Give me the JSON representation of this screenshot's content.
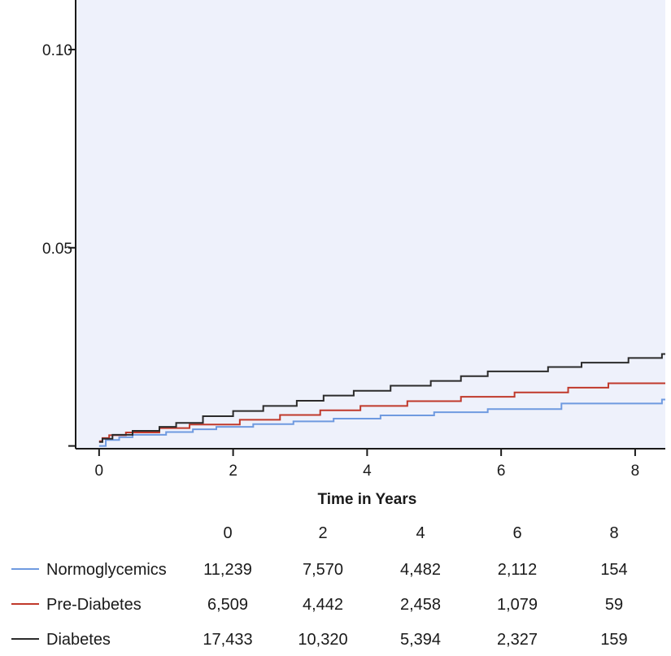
{
  "chart_data": {
    "type": "line",
    "step": true,
    "title": "",
    "xlabel": "Time in Years",
    "ylabel": "",
    "xlim": [
      -0.35,
      8.45
    ],
    "ylim": [
      -0.0007,
      0.1125
    ],
    "xticks": [
      0,
      2,
      4,
      6,
      8
    ],
    "xtick_labels": [
      "0",
      "2",
      "4",
      "6",
      "8"
    ],
    "yticks": [
      0.0,
      0.05,
      0.1
    ],
    "ytick_labels": [
      "",
      "0.05",
      "0.10"
    ],
    "background": "#eef1fb",
    "series": [
      {
        "name": "Normoglycemics",
        "color": "#6f9ae0",
        "x": [
          0,
          0.1,
          0.3,
          0.5,
          1.0,
          1.4,
          1.75,
          2.3,
          2.9,
          3.5,
          4.2,
          5.0,
          5.8,
          6.9,
          8.4
        ],
        "y": [
          0.0,
          0.0015,
          0.0022,
          0.0028,
          0.0035,
          0.0042,
          0.0048,
          0.0055,
          0.0062,
          0.0069,
          0.0077,
          0.0085,
          0.0093,
          0.0107,
          0.0117
        ]
      },
      {
        "name": "Pre-Diabetes",
        "color": "#c0392b",
        "x": [
          0,
          0.05,
          0.15,
          0.4,
          0.9,
          1.35,
          2.1,
          2.7,
          3.3,
          3.9,
          4.6,
          5.4,
          6.2,
          7.0,
          7.6,
          8.4
        ],
        "y": [
          0.0012,
          0.002,
          0.0027,
          0.0034,
          0.0045,
          0.0054,
          0.0066,
          0.0078,
          0.009,
          0.0101,
          0.0113,
          0.0124,
          0.0135,
          0.0147,
          0.0158,
          0.0158
        ]
      },
      {
        "name": "Diabetes",
        "color": "#2b2b2b",
        "x": [
          0,
          0.05,
          0.2,
          0.5,
          0.9,
          1.15,
          1.55,
          2.0,
          2.45,
          2.95,
          3.35,
          3.8,
          4.35,
          4.95,
          5.4,
          5.8,
          6.7,
          7.2,
          7.9,
          8.4
        ],
        "y": [
          0.001,
          0.0018,
          0.0028,
          0.0038,
          0.0048,
          0.0058,
          0.0075,
          0.0088,
          0.0101,
          0.0114,
          0.0127,
          0.0139,
          0.0152,
          0.0164,
          0.0176,
          0.0188,
          0.0199,
          0.021,
          0.0222,
          0.0232
        ]
      }
    ]
  },
  "risk_table": {
    "headers": [
      "0",
      "2",
      "4",
      "6",
      "8"
    ],
    "rows": [
      {
        "label": "Normoglycemics",
        "color": "#6f9ae0",
        "values": [
          "11,239",
          "7,570",
          "4,482",
          "2,112",
          "154"
        ]
      },
      {
        "label": "Pre-Diabetes",
        "color": "#c0392b",
        "values": [
          "6,509",
          "4,442",
          "2,458",
          "1,079",
          "59"
        ]
      },
      {
        "label": "Diabetes",
        "color": "#2b2b2b",
        "values": [
          "17,433",
          "10,320",
          "5,394",
          "2,327",
          "159"
        ]
      }
    ]
  }
}
